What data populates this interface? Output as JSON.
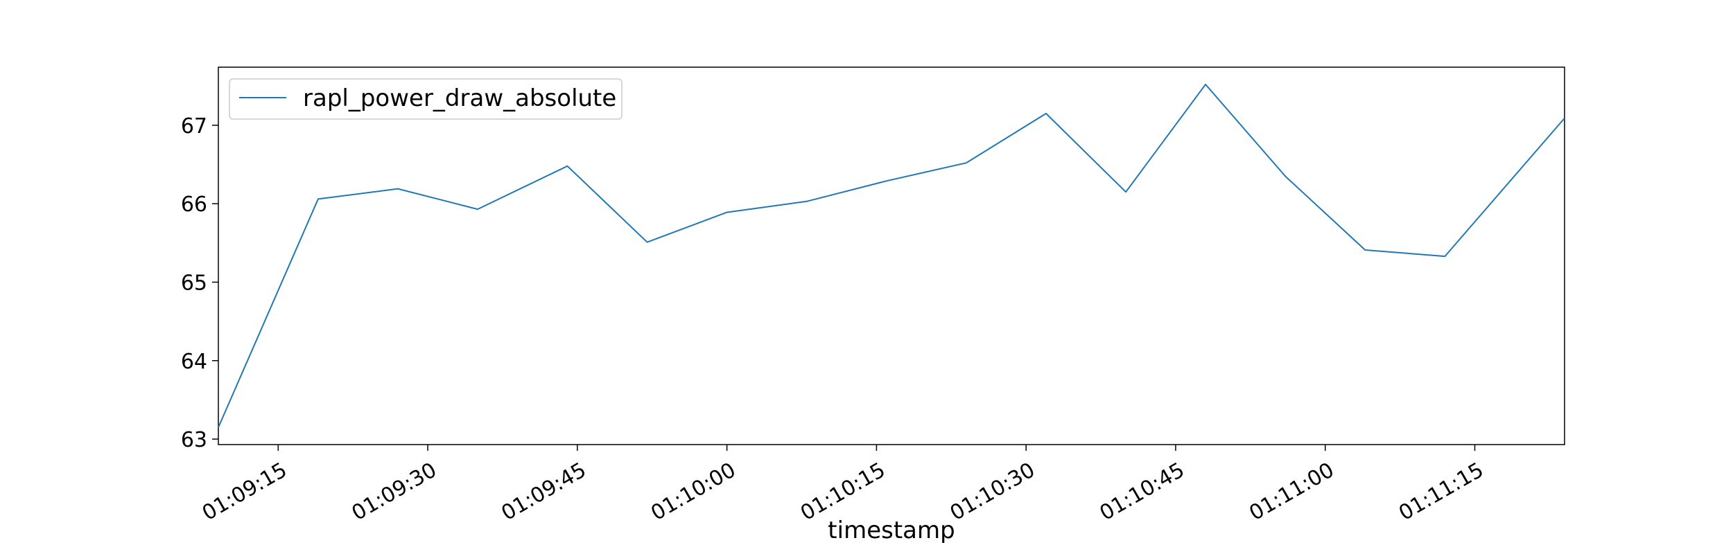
{
  "chart_data": {
    "type": "line",
    "title": "",
    "xlabel": "timestamp",
    "ylabel": "",
    "x_tick_labels": [
      "01:09:15",
      "01:09:30",
      "01:09:45",
      "01:10:00",
      "01:10:15",
      "01:10:30",
      "01:10:45",
      "01:11:00",
      "01:11:15"
    ],
    "y_tick_labels": [
      "63",
      "64",
      "65",
      "66",
      "67"
    ],
    "ylim": [
      62.93,
      67.74
    ],
    "xlim": [
      "01:09:09",
      "01:11:24"
    ],
    "grid": false,
    "legend_position": "top-left",
    "series": [
      {
        "name": "rapl_power_draw_absolute",
        "color": "#1f77b4",
        "x": [
          "01:09:09",
          "01:09:19",
          "01:09:27",
          "01:09:35",
          "01:09:44",
          "01:09:52",
          "01:10:00",
          "01:10:08",
          "01:10:16",
          "01:10:24",
          "01:10:32",
          "01:10:40",
          "01:10:48",
          "01:10:56",
          "01:11:04",
          "01:11:12",
          "01:11:24"
        ],
        "values": [
          63.15,
          66.06,
          66.19,
          65.93,
          66.48,
          65.51,
          65.89,
          66.03,
          66.29,
          66.52,
          67.15,
          66.15,
          67.52,
          66.35,
          65.41,
          65.33,
          67.09
        ]
      }
    ]
  }
}
